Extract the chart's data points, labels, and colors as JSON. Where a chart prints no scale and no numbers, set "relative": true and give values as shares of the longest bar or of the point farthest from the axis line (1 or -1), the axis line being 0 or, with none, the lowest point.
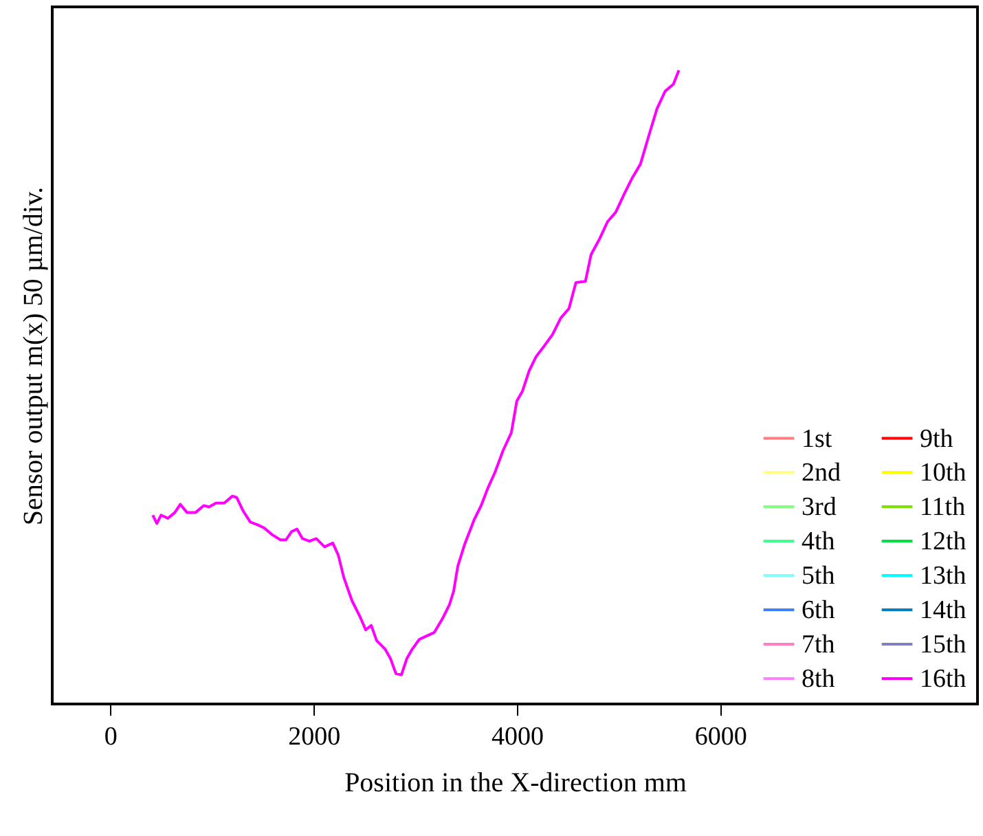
{
  "chart_data": {
    "type": "line",
    "xlabel": "Position in the X-direction  mm",
    "ylabel": "Sensor output m(x)  50 µm/div.",
    "relative": true,
    "grid": false,
    "legend": "bottom right",
    "marker": "none",
    "line_style": "solid",
    "xlim": [
      -570,
      8530
    ],
    "xticks": [
      0,
      2000,
      4000,
      6000
    ],
    "x": [
      419,
      459,
      500,
      567,
      635,
      689,
      757,
      838,
      919,
      973,
      1040,
      1121,
      1202,
      1243,
      1310,
      1378,
      1446,
      1513,
      1594,
      1675,
      1729,
      1783,
      1837,
      1891,
      1959,
      2027,
      2108,
      2189,
      2243,
      2297,
      2378,
      2459,
      2513,
      2567,
      2621,
      2702,
      2756,
      2810,
      2864,
      2918,
      2972,
      3040,
      3107,
      3188,
      3269,
      3337,
      3378,
      3418,
      3486,
      3580,
      3648,
      3715,
      3783,
      3864,
      3945,
      3999,
      4053,
      4121,
      4188,
      4269,
      4350,
      4431,
      4512,
      4580,
      4674,
      4729,
      4810,
      4891,
      4972,
      5053,
      5134,
      5215,
      5296,
      5377,
      5458,
      5539,
      5593
    ],
    "series": [
      {
        "name": "1st",
        "color": "#ff8080",
        "values": [
          null,
          null,
          null,
          null,
          null,
          null,
          null,
          null,
          null,
          null,
          null,
          null,
          null,
          null,
          null,
          null,
          null,
          null,
          null,
          null,
          null,
          null,
          null,
          null,
          null,
          null,
          null,
          null,
          null,
          null,
          null,
          null,
          null,
          null,
          null,
          null,
          null,
          null,
          null,
          null,
          null,
          null,
          null,
          null,
          null,
          null,
          null,
          null,
          null,
          null,
          null,
          null,
          null,
          null,
          null,
          null,
          null,
          null,
          null,
          null,
          null,
          null,
          null,
          null,
          null,
          null,
          null,
          null,
          null,
          null,
          null,
          null,
          null,
          null,
          null,
          null,
          null
        ]
      },
      {
        "name": "2nd",
        "color": "#ffff80",
        "values": [
          null,
          null,
          null,
          null,
          null,
          null,
          null,
          null,
          null,
          null,
          null,
          null,
          null,
          null,
          null,
          null,
          null,
          null,
          null,
          null,
          null,
          null,
          null,
          null,
          null,
          null,
          null,
          null,
          null,
          null,
          null,
          null,
          null,
          null,
          null,
          null,
          null,
          null,
          null,
          null,
          null,
          null,
          null,
          null,
          null,
          null,
          null,
          null,
          null,
          null,
          null,
          null,
          null,
          null,
          null,
          null,
          null,
          null,
          null,
          null,
          null,
          null,
          null,
          null,
          null,
          null,
          null,
          null,
          null,
          null,
          null,
          null,
          null,
          null,
          null,
          null,
          null
        ]
      },
      {
        "name": "3rd",
        "color": "#80ff80",
        "values": [
          null,
          null,
          null,
          null,
          null,
          null,
          null,
          null,
          null,
          null,
          null,
          null,
          null,
          null,
          null,
          null,
          null,
          null,
          null,
          null,
          null,
          null,
          null,
          null,
          null,
          null,
          null,
          null,
          null,
          null,
          null,
          null,
          null,
          null,
          null,
          null,
          null,
          null,
          null,
          null,
          null,
          null,
          null,
          null,
          null,
          null,
          null,
          null,
          null,
          null,
          null,
          null,
          null,
          null,
          null,
          null,
          null,
          null,
          null,
          null,
          null,
          null,
          null,
          null,
          null,
          null,
          null,
          null,
          null,
          null,
          null,
          null,
          null,
          null,
          null,
          null,
          null
        ]
      },
      {
        "name": "4th",
        "color": "#40ff90",
        "values": [
          null,
          null,
          null,
          null,
          null,
          null,
          null,
          null,
          null,
          null,
          null,
          null,
          null,
          null,
          null,
          null,
          null,
          null,
          null,
          null,
          null,
          null,
          null,
          null,
          null,
          null,
          null,
          null,
          null,
          null,
          null,
          null,
          null,
          null,
          null,
          null,
          null,
          null,
          null,
          null,
          null,
          null,
          null,
          null,
          null,
          null,
          null,
          null,
          null,
          null,
          null,
          null,
          null,
          null,
          null,
          null,
          null,
          null,
          null,
          null,
          null,
          null,
          null,
          null,
          null,
          null,
          null,
          null,
          null,
          null,
          null,
          null,
          null,
          null,
          null,
          null,
          null
        ]
      },
      {
        "name": "5th",
        "color": "#80ffff",
        "values": [
          null,
          null,
          null,
          null,
          null,
          null,
          null,
          null,
          null,
          null,
          null,
          null,
          null,
          null,
          null,
          null,
          null,
          null,
          null,
          null,
          null,
          null,
          null,
          null,
          null,
          null,
          null,
          null,
          null,
          null,
          null,
          null,
          null,
          null,
          null,
          null,
          null,
          null,
          null,
          null,
          null,
          null,
          null,
          null,
          null,
          null,
          null,
          null,
          null,
          null,
          null,
          null,
          null,
          null,
          null,
          null,
          null,
          null,
          null,
          null,
          null,
          null,
          null,
          null,
          null,
          null,
          null,
          null,
          null,
          null,
          null,
          null,
          null,
          null,
          null,
          null,
          null
        ]
      },
      {
        "name": "6th",
        "color": "#4080ff",
        "values": [
          null,
          null,
          null,
          null,
          null,
          null,
          null,
          null,
          null,
          null,
          null,
          null,
          null,
          null,
          null,
          null,
          null,
          null,
          null,
          null,
          null,
          null,
          null,
          null,
          null,
          null,
          null,
          null,
          null,
          null,
          null,
          null,
          null,
          null,
          null,
          null,
          null,
          null,
          null,
          null,
          null,
          null,
          null,
          null,
          null,
          null,
          null,
          null,
          null,
          null,
          null,
          null,
          null,
          null,
          null,
          null,
          null,
          null,
          null,
          null,
          null,
          null,
          null,
          null,
          null,
          null,
          null,
          null,
          null,
          null,
          null,
          null,
          null,
          null,
          null,
          null,
          null
        ]
      },
      {
        "name": "7th",
        "color": "#ff80c0",
        "values": [
          null,
          null,
          null,
          null,
          null,
          null,
          null,
          null,
          null,
          null,
          null,
          null,
          null,
          null,
          null,
          null,
          null,
          null,
          null,
          null,
          null,
          null,
          null,
          null,
          null,
          null,
          null,
          null,
          null,
          null,
          null,
          null,
          null,
          null,
          null,
          null,
          null,
          null,
          null,
          null,
          null,
          null,
          null,
          null,
          null,
          null,
          null,
          null,
          null,
          null,
          null,
          null,
          null,
          null,
          null,
          null,
          null,
          null,
          null,
          null,
          null,
          null,
          null,
          null,
          null,
          null,
          null,
          null,
          null,
          null,
          null,
          null,
          null,
          null,
          null,
          null,
          null
        ]
      },
      {
        "name": "8th",
        "color": "#ff80ff",
        "values": [
          null,
          null,
          null,
          null,
          null,
          null,
          null,
          null,
          null,
          null,
          null,
          null,
          null,
          null,
          null,
          null,
          null,
          null,
          null,
          null,
          null,
          null,
          null,
          null,
          null,
          null,
          null,
          null,
          null,
          null,
          null,
          null,
          null,
          null,
          null,
          null,
          null,
          null,
          null,
          null,
          null,
          null,
          null,
          null,
          null,
          null,
          null,
          null,
          null,
          null,
          null,
          null,
          null,
          null,
          null,
          null,
          null,
          null,
          null,
          null,
          null,
          null,
          null,
          null,
          null,
          null,
          null,
          null,
          null,
          null,
          null,
          null,
          null,
          null,
          null,
          null,
          null
        ]
      },
      {
        "name": "9th",
        "color": "#ff0000",
        "values": [
          null,
          null,
          null,
          null,
          null,
          null,
          null,
          null,
          null,
          null,
          null,
          null,
          null,
          null,
          null,
          null,
          null,
          null,
          null,
          null,
          null,
          null,
          null,
          null,
          null,
          null,
          null,
          null,
          null,
          null,
          null,
          null,
          null,
          null,
          null,
          null,
          null,
          null,
          null,
          null,
          null,
          null,
          null,
          null,
          null,
          null,
          null,
          null,
          null,
          null,
          null,
          null,
          null,
          null,
          null,
          null,
          null,
          null,
          null,
          null,
          null,
          null,
          null,
          null,
          null,
          null,
          null,
          null,
          null,
          null,
          null,
          null,
          null,
          null,
          null,
          null,
          null
        ]
      },
      {
        "name": "10th",
        "color": "#ffff00",
        "values": [
          null,
          null,
          null,
          null,
          null,
          null,
          null,
          null,
          null,
          null,
          null,
          null,
          null,
          null,
          null,
          null,
          null,
          null,
          null,
          null,
          null,
          null,
          null,
          null,
          null,
          null,
          null,
          null,
          null,
          null,
          null,
          null,
          null,
          null,
          null,
          null,
          null,
          null,
          null,
          null,
          null,
          null,
          null,
          null,
          null,
          null,
          null,
          null,
          null,
          null,
          null,
          null,
          null,
          null,
          null,
          null,
          null,
          null,
          null,
          null,
          null,
          null,
          null,
          null,
          null,
          null,
          null,
          null,
          null,
          null,
          null,
          null,
          null,
          null,
          null,
          null,
          null
        ]
      },
      {
        "name": "11th",
        "color": "#80e000",
        "values": [
          null,
          null,
          null,
          null,
          null,
          null,
          null,
          null,
          null,
          null,
          null,
          null,
          null,
          null,
          null,
          null,
          null,
          null,
          null,
          null,
          null,
          null,
          null,
          null,
          null,
          null,
          null,
          null,
          null,
          null,
          null,
          null,
          null,
          null,
          null,
          null,
          null,
          null,
          null,
          null,
          null,
          null,
          null,
          null,
          null,
          null,
          null,
          null,
          null,
          null,
          null,
          null,
          null,
          null,
          null,
          null,
          null,
          null,
          null,
          null,
          null,
          null,
          null,
          null,
          null,
          null,
          null,
          null,
          null,
          null,
          null,
          null,
          null,
          null,
          null,
          null,
          null
        ]
      },
      {
        "name": "12th",
        "color": "#00e040",
        "values": [
          null,
          null,
          null,
          null,
          null,
          null,
          null,
          null,
          null,
          null,
          null,
          null,
          null,
          null,
          null,
          null,
          null,
          null,
          null,
          null,
          null,
          null,
          null,
          null,
          null,
          null,
          null,
          null,
          null,
          null,
          null,
          null,
          null,
          null,
          null,
          null,
          null,
          null,
          null,
          null,
          null,
          null,
          null,
          null,
          null,
          null,
          null,
          null,
          null,
          null,
          null,
          null,
          null,
          null,
          null,
          null,
          null,
          null,
          null,
          null,
          null,
          null,
          null,
          null,
          null,
          null,
          null,
          null,
          null,
          null,
          null,
          null,
          null,
          null,
          null,
          null,
          null
        ]
      },
      {
        "name": "13th",
        "color": "#00ffff",
        "values": [
          null,
          null,
          null,
          null,
          null,
          null,
          null,
          null,
          null,
          null,
          null,
          null,
          null,
          null,
          null,
          null,
          null,
          null,
          null,
          null,
          null,
          null,
          null,
          null,
          null,
          null,
          null,
          null,
          null,
          null,
          null,
          null,
          null,
          null,
          null,
          null,
          null,
          null,
          null,
          null,
          null,
          null,
          null,
          null,
          null,
          null,
          null,
          null,
          null,
          null,
          null,
          null,
          null,
          null,
          null,
          null,
          null,
          null,
          null,
          null,
          null,
          null,
          null,
          null,
          null,
          null,
          null,
          null,
          null,
          null,
          null,
          null,
          null,
          null,
          null,
          null,
          null
        ]
      },
      {
        "name": "14th",
        "color": "#0080c0",
        "values": [
          null,
          null,
          null,
          null,
          null,
          null,
          null,
          null,
          null,
          null,
          null,
          null,
          null,
          null,
          null,
          null,
          null,
          null,
          null,
          null,
          null,
          null,
          null,
          null,
          null,
          null,
          null,
          null,
          null,
          null,
          null,
          null,
          null,
          null,
          null,
          null,
          null,
          null,
          null,
          null,
          null,
          null,
          null,
          null,
          null,
          null,
          null,
          null,
          null,
          null,
          null,
          null,
          null,
          null,
          null,
          null,
          null,
          null,
          null,
          null,
          null,
          null,
          null,
          null,
          null,
          null,
          null,
          null,
          null,
          null,
          null,
          null,
          null,
          null,
          null,
          null,
          null
        ]
      },
      {
        "name": "15th",
        "color": "#8080c0",
        "values": [
          null,
          null,
          null,
          null,
          null,
          null,
          null,
          null,
          null,
          null,
          null,
          null,
          null,
          null,
          null,
          null,
          null,
          null,
          null,
          null,
          null,
          null,
          null,
          null,
          null,
          null,
          null,
          null,
          null,
          null,
          null,
          null,
          null,
          null,
          null,
          null,
          null,
          null,
          null,
          null,
          null,
          null,
          null,
          null,
          null,
          null,
          null,
          null,
          null,
          null,
          null,
          null,
          null,
          null,
          null,
          null,
          null,
          null,
          null,
          null,
          null,
          null,
          null,
          null,
          null,
          null,
          null,
          null,
          null,
          null,
          null,
          null,
          null,
          null,
          null,
          null,
          null
        ]
      },
      {
        "name": "16th",
        "color": "#ff00ff",
        "values": [
          0.298,
          0.285,
          0.298,
          0.293,
          0.302,
          0.315,
          0.302,
          0.302,
          0.313,
          0.311,
          0.317,
          0.317,
          0.328,
          0.326,
          0.304,
          0.287,
          0.283,
          0.278,
          0.267,
          0.259,
          0.259,
          0.272,
          0.276,
          0.261,
          0.257,
          0.261,
          0.248,
          0.254,
          0.235,
          0.2,
          0.163,
          0.137,
          0.117,
          0.124,
          0.1,
          0.087,
          0.072,
          0.048,
          0.046,
          0.072,
          0.087,
          0.102,
          0.107,
          0.113,
          0.135,
          0.157,
          0.178,
          0.217,
          0.252,
          0.291,
          0.313,
          0.341,
          0.365,
          0.4,
          0.428,
          0.478,
          0.493,
          0.526,
          0.548,
          0.565,
          0.583,
          0.609,
          0.624,
          0.665,
          0.667,
          0.709,
          0.733,
          0.761,
          0.776,
          0.804,
          0.83,
          0.852,
          0.896,
          0.939,
          0.967,
          0.978,
          1
        ]
      }
    ]
  }
}
